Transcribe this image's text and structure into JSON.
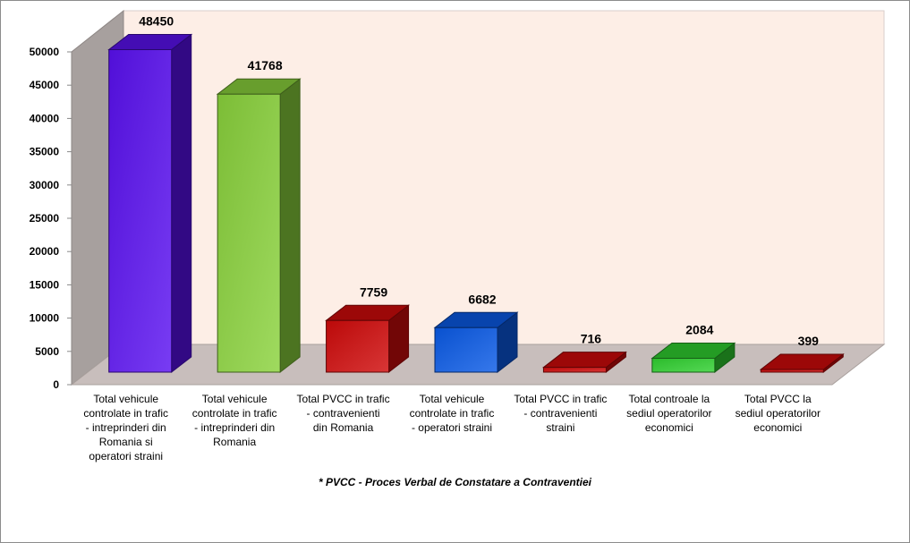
{
  "chart_data": {
    "type": "bar",
    "categories": [
      "Total vehicule controlate in trafic - intreprinderi din Romania si operatori straini",
      "Total vehicule controlate in trafic - intreprinderi din Romania",
      "Total PVCC in trafic - contravenienti din Romania",
      "Total vehicule controlate in trafic - operatori straini",
      "Total PVCC in trafic - contravenienti straini",
      "Total controale la sediul operatorilor economici",
      "Total PVCC la sediul operatorilor economici"
    ],
    "category_labels": [
      "Total vehicule\ncontrolate in trafic\n- intreprinderi din\nRomania si\noperatori straini",
      "Total vehicule\ncontrolate in trafic\n- intreprinderi din\nRomania",
      "Total PVCC in trafic\n-  contravenienti\ndin Romania",
      "Total vehicule\ncontrolate in trafic\n- operatori straini",
      "Total PVCC in trafic\n- contravenienti\nstraini",
      "Total controale la\nsediul operatorilor\neconomici",
      "Total PVCC la\nsediul operatorilor\neconomici"
    ],
    "values": [
      48450,
      41768,
      7759,
      6682,
      716,
      2084,
      399
    ],
    "value_labels": [
      "48450",
      "41768",
      "7759",
      "6682",
      "716",
      "2084",
      "399"
    ],
    "colors": [
      "#5a11f0",
      "#8ad23c",
      "#d00a0a",
      "#0a5ae6",
      "#d00a0a",
      "#30d030",
      "#d00a0a"
    ],
    "ylim": [
      0,
      50000
    ],
    "yticks": [
      "0",
      "5000",
      "10000",
      "15000",
      "20000",
      "25000",
      "30000",
      "35000",
      "40000",
      "45000",
      "50000"
    ],
    "grid": false,
    "three_d": true,
    "back_wall_color": "#fdeee6",
    "side_wall_color": "#a7a09e",
    "floor_color": "#c8bebc",
    "footnote": "* PVCC -  Proces Verbal de Constatare a Contraventiei"
  }
}
